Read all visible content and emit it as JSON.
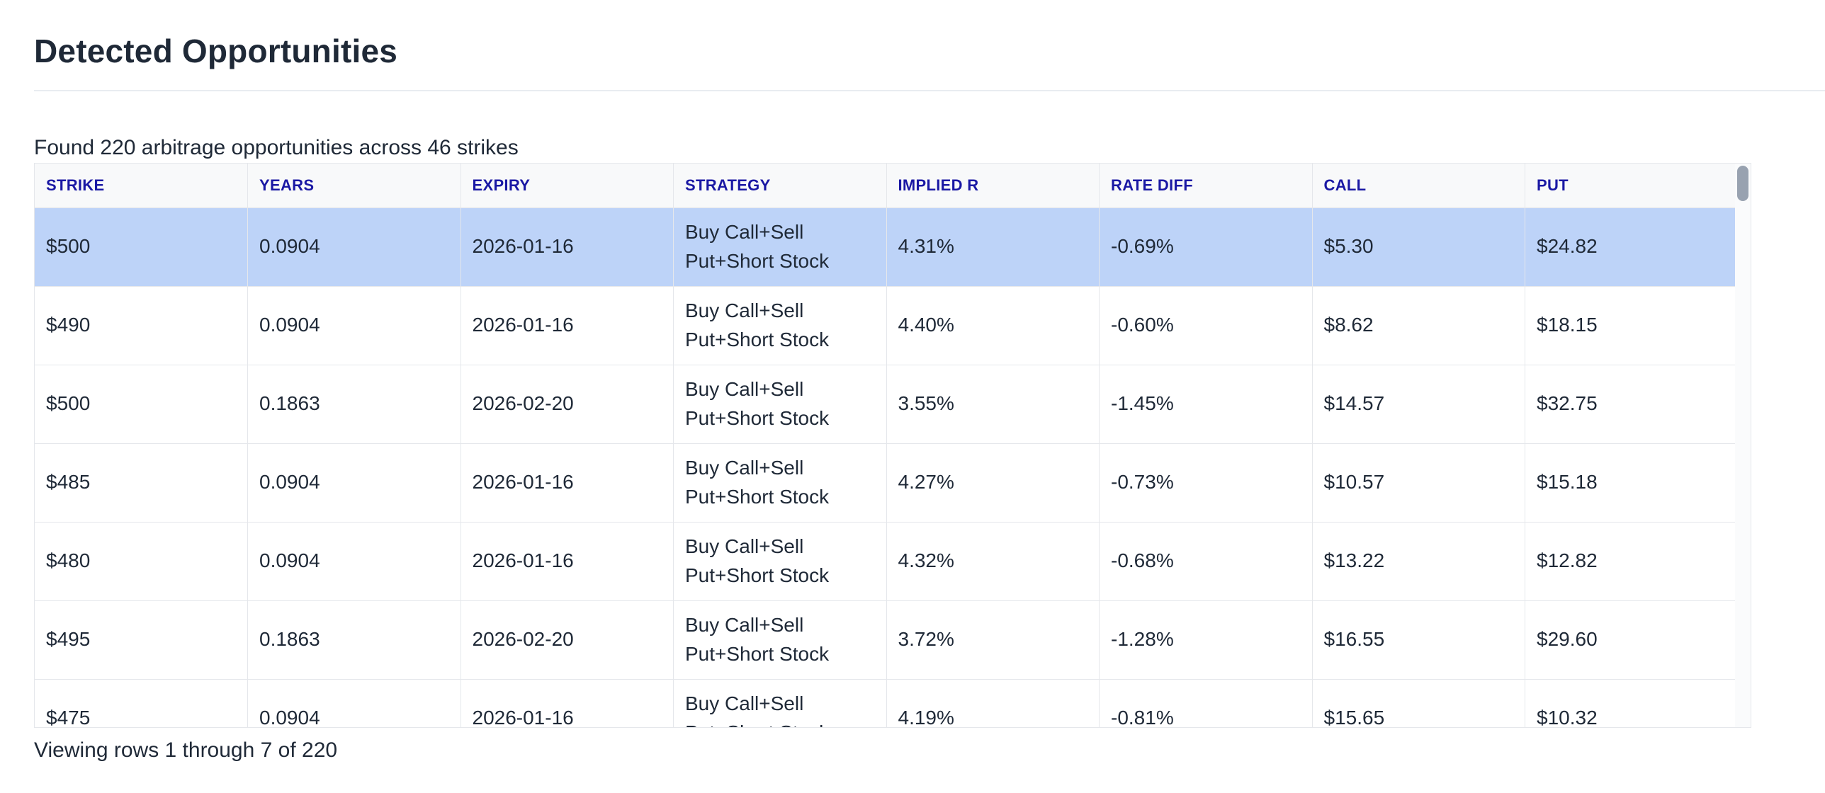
{
  "page": {
    "title": "Detected Opportunities",
    "summary": "Found 220 arbitrage opportunities across 46 strikes",
    "footer": "Viewing rows 1 through 7 of 220"
  },
  "colors": {
    "header_text": "#1a18a4",
    "row_highlight": "#bdd3f8",
    "border": "#e5e7eb",
    "text": "#1f2937",
    "scrollbar_thumb": "#98a2b0"
  },
  "table": {
    "columns": [
      "STRIKE",
      "YEARS",
      "EXPIRY",
      "STRATEGY",
      "IMPLIED R",
      "RATE DIFF",
      "CALL",
      "PUT"
    ],
    "highlighted_row_index": 0,
    "rows": [
      {
        "cells": [
          "$500",
          "0.0904",
          "2026-01-16",
          "Buy Call+Sell Put+Short Stock",
          "4.31%",
          "-0.69%",
          "$5.30",
          "$24.82"
        ]
      },
      {
        "cells": [
          "$490",
          "0.0904",
          "2026-01-16",
          "Buy Call+Sell Put+Short Stock",
          "4.40%",
          "-0.60%",
          "$8.62",
          "$18.15"
        ]
      },
      {
        "cells": [
          "$500",
          "0.1863",
          "2026-02-20",
          "Buy Call+Sell Put+Short Stock",
          "3.55%",
          "-1.45%",
          "$14.57",
          "$32.75"
        ]
      },
      {
        "cells": [
          "$485",
          "0.0904",
          "2026-01-16",
          "Buy Call+Sell Put+Short Stock",
          "4.27%",
          "-0.73%",
          "$10.57",
          "$15.18"
        ]
      },
      {
        "cells": [
          "$480",
          "0.0904",
          "2026-01-16",
          "Buy Call+Sell Put+Short Stock",
          "4.32%",
          "-0.68%",
          "$13.22",
          "$12.82"
        ]
      },
      {
        "cells": [
          "$495",
          "0.1863",
          "2026-02-20",
          "Buy Call+Sell Put+Short Stock",
          "3.72%",
          "-1.28%",
          "$16.55",
          "$29.60"
        ]
      },
      {
        "cells": [
          "$475",
          "0.0904",
          "2026-01-16",
          "Buy Call+Sell Put+Short Stock",
          "4.19%",
          "-0.81%",
          "$15.65",
          "$10.32"
        ]
      }
    ]
  }
}
